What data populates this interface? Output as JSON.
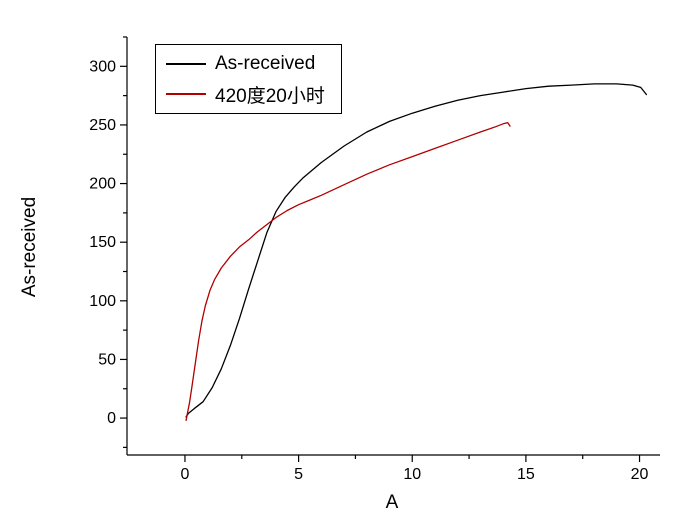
{
  "chart_data": {
    "type": "line",
    "title": "",
    "xlabel": "A",
    "ylabel": "As-received",
    "grid": false,
    "legend_position": "top-left",
    "x_range": [
      -2.55,
      20.9
    ],
    "y_range": [
      -31.5,
      325
    ],
    "x_ticks": [
      0,
      5,
      10,
      15,
      20
    ],
    "x_minor_ticks": [
      2.5,
      7.5,
      12.5,
      17.5
    ],
    "y_ticks": [
      0,
      50,
      100,
      150,
      200,
      250,
      300
    ],
    "y_minor_ticks": [
      -25,
      25,
      75,
      125,
      175,
      225,
      275,
      325
    ],
    "axis_color": "#000000",
    "series": [
      {
        "name": "As-received",
        "color": "#000000",
        "points": [
          [
            0.05,
            1
          ],
          [
            0.15,
            4
          ],
          [
            0.4,
            8
          ],
          [
            0.8,
            14
          ],
          [
            1.2,
            26
          ],
          [
            1.6,
            42
          ],
          [
            2.0,
            62
          ],
          [
            2.4,
            85
          ],
          [
            2.8,
            110
          ],
          [
            3.2,
            134
          ],
          [
            3.6,
            158
          ],
          [
            4.0,
            176
          ],
          [
            4.4,
            188
          ],
          [
            4.8,
            197
          ],
          [
            5.2,
            205
          ],
          [
            6,
            218
          ],
          [
            7,
            232
          ],
          [
            8,
            244
          ],
          [
            9,
            253
          ],
          [
            10,
            260
          ],
          [
            11,
            266
          ],
          [
            12,
            271
          ],
          [
            13,
            275
          ],
          [
            14,
            278
          ],
          [
            15,
            281
          ],
          [
            16,
            283
          ],
          [
            17,
            284
          ],
          [
            18,
            285
          ],
          [
            19,
            285
          ],
          [
            19.7,
            284
          ],
          [
            20.05,
            282
          ],
          [
            20.3,
            276
          ]
        ]
      },
      {
        "name": "420度20小时",
        "color": "#b20000",
        "points": [
          [
            0.05,
            -2
          ],
          [
            0.1,
            3
          ],
          [
            0.2,
            13
          ],
          [
            0.3,
            26
          ],
          [
            0.45,
            46
          ],
          [
            0.6,
            66
          ],
          [
            0.75,
            83
          ],
          [
            0.9,
            96
          ],
          [
            1.1,
            109
          ],
          [
            1.3,
            118
          ],
          [
            1.6,
            128
          ],
          [
            2.0,
            138
          ],
          [
            2.4,
            146
          ],
          [
            2.8,
            152
          ],
          [
            3.2,
            159
          ],
          [
            3.6,
            165
          ],
          [
            4.0,
            171
          ],
          [
            4.5,
            177
          ],
          [
            5.0,
            182
          ],
          [
            5.5,
            186
          ],
          [
            6,
            190
          ],
          [
            7,
            199
          ],
          [
            8,
            208
          ],
          [
            9,
            216
          ],
          [
            10,
            223
          ],
          [
            11,
            230
          ],
          [
            12,
            237
          ],
          [
            13,
            244
          ],
          [
            13.6,
            248
          ],
          [
            14.0,
            251
          ],
          [
            14.2,
            252
          ],
          [
            14.3,
            249
          ]
        ]
      }
    ]
  }
}
